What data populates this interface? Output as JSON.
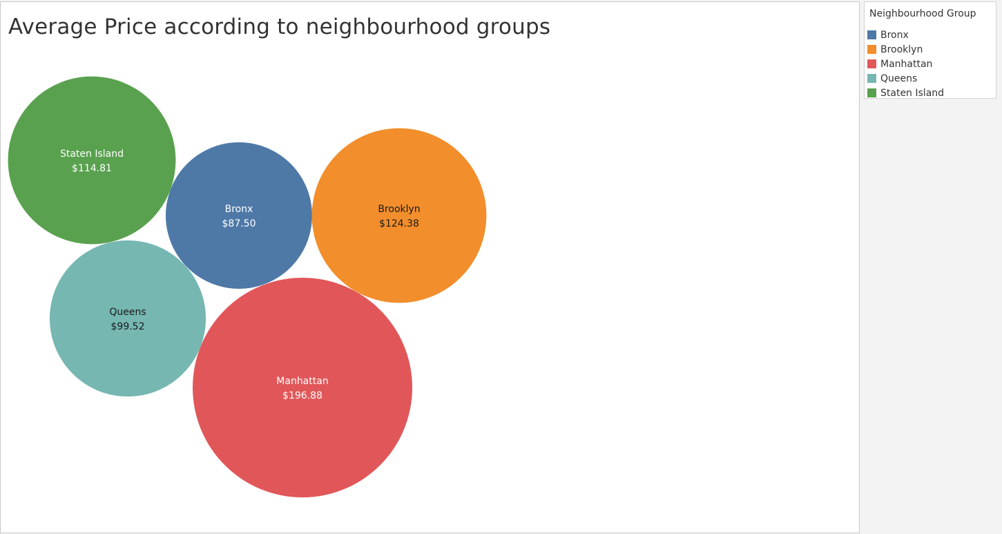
{
  "colors": {
    "Bronx": "#4e79a7",
    "Brooklyn": "#f28e2b",
    "Manhattan": "#e15759",
    "Queens": "#76b7b2",
    "Staten Island": "#59a14f"
  },
  "legend": {
    "title": "Neighbourhood Group",
    "items": [
      "Bronx",
      "Brooklyn",
      "Manhattan",
      "Queens",
      "Staten Island"
    ]
  },
  "chart_data": {
    "type": "bubble",
    "title": "Average Price according to neighbourhood groups",
    "categories": [
      "Staten Island",
      "Bronx",
      "Brooklyn",
      "Queens",
      "Manhattan"
    ],
    "values": [
      114.81,
      87.5,
      124.38,
      99.52,
      196.88
    ],
    "value_labels": [
      "$114.81",
      "$87.50",
      "$124.38",
      "$99.52",
      "$196.88"
    ],
    "legend_position": "top-right"
  }
}
